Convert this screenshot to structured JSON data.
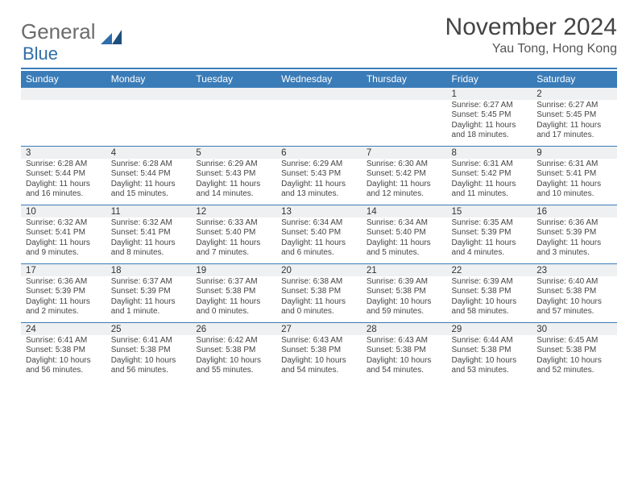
{
  "brand": {
    "part1": "General",
    "part2": "Blue"
  },
  "title": "November 2024",
  "subtitle": "Yau Tong, Hong Kong",
  "colors": {
    "header_bar": "#3a7cb8",
    "row_header_bg": "#eef0f1",
    "text": "#444444",
    "brand_gray": "#6b6b6b",
    "brand_blue": "#2f6ea8"
  },
  "day_names": [
    "Sunday",
    "Monday",
    "Tuesday",
    "Wednesday",
    "Thursday",
    "Friday",
    "Saturday"
  ],
  "weeks": [
    [
      null,
      null,
      null,
      null,
      null,
      {
        "n": "1",
        "sunrise": "Sunrise: 6:27 AM",
        "sunset": "Sunset: 5:45 PM",
        "daylight": "Daylight: 11 hours and 18 minutes."
      },
      {
        "n": "2",
        "sunrise": "Sunrise: 6:27 AM",
        "sunset": "Sunset: 5:45 PM",
        "daylight": "Daylight: 11 hours and 17 minutes."
      }
    ],
    [
      {
        "n": "3",
        "sunrise": "Sunrise: 6:28 AM",
        "sunset": "Sunset: 5:44 PM",
        "daylight": "Daylight: 11 hours and 16 minutes."
      },
      {
        "n": "4",
        "sunrise": "Sunrise: 6:28 AM",
        "sunset": "Sunset: 5:44 PM",
        "daylight": "Daylight: 11 hours and 15 minutes."
      },
      {
        "n": "5",
        "sunrise": "Sunrise: 6:29 AM",
        "sunset": "Sunset: 5:43 PM",
        "daylight": "Daylight: 11 hours and 14 minutes."
      },
      {
        "n": "6",
        "sunrise": "Sunrise: 6:29 AM",
        "sunset": "Sunset: 5:43 PM",
        "daylight": "Daylight: 11 hours and 13 minutes."
      },
      {
        "n": "7",
        "sunrise": "Sunrise: 6:30 AM",
        "sunset": "Sunset: 5:42 PM",
        "daylight": "Daylight: 11 hours and 12 minutes."
      },
      {
        "n": "8",
        "sunrise": "Sunrise: 6:31 AM",
        "sunset": "Sunset: 5:42 PM",
        "daylight": "Daylight: 11 hours and 11 minutes."
      },
      {
        "n": "9",
        "sunrise": "Sunrise: 6:31 AM",
        "sunset": "Sunset: 5:41 PM",
        "daylight": "Daylight: 11 hours and 10 minutes."
      }
    ],
    [
      {
        "n": "10",
        "sunrise": "Sunrise: 6:32 AM",
        "sunset": "Sunset: 5:41 PM",
        "daylight": "Daylight: 11 hours and 9 minutes."
      },
      {
        "n": "11",
        "sunrise": "Sunrise: 6:32 AM",
        "sunset": "Sunset: 5:41 PM",
        "daylight": "Daylight: 11 hours and 8 minutes."
      },
      {
        "n": "12",
        "sunrise": "Sunrise: 6:33 AM",
        "sunset": "Sunset: 5:40 PM",
        "daylight": "Daylight: 11 hours and 7 minutes."
      },
      {
        "n": "13",
        "sunrise": "Sunrise: 6:34 AM",
        "sunset": "Sunset: 5:40 PM",
        "daylight": "Daylight: 11 hours and 6 minutes."
      },
      {
        "n": "14",
        "sunrise": "Sunrise: 6:34 AM",
        "sunset": "Sunset: 5:40 PM",
        "daylight": "Daylight: 11 hours and 5 minutes."
      },
      {
        "n": "15",
        "sunrise": "Sunrise: 6:35 AM",
        "sunset": "Sunset: 5:39 PM",
        "daylight": "Daylight: 11 hours and 4 minutes."
      },
      {
        "n": "16",
        "sunrise": "Sunrise: 6:36 AM",
        "sunset": "Sunset: 5:39 PM",
        "daylight": "Daylight: 11 hours and 3 minutes."
      }
    ],
    [
      {
        "n": "17",
        "sunrise": "Sunrise: 6:36 AM",
        "sunset": "Sunset: 5:39 PM",
        "daylight": "Daylight: 11 hours and 2 minutes."
      },
      {
        "n": "18",
        "sunrise": "Sunrise: 6:37 AM",
        "sunset": "Sunset: 5:39 PM",
        "daylight": "Daylight: 11 hours and 1 minute."
      },
      {
        "n": "19",
        "sunrise": "Sunrise: 6:37 AM",
        "sunset": "Sunset: 5:38 PM",
        "daylight": "Daylight: 11 hours and 0 minutes."
      },
      {
        "n": "20",
        "sunrise": "Sunrise: 6:38 AM",
        "sunset": "Sunset: 5:38 PM",
        "daylight": "Daylight: 11 hours and 0 minutes."
      },
      {
        "n": "21",
        "sunrise": "Sunrise: 6:39 AM",
        "sunset": "Sunset: 5:38 PM",
        "daylight": "Daylight: 10 hours and 59 minutes."
      },
      {
        "n": "22",
        "sunrise": "Sunrise: 6:39 AM",
        "sunset": "Sunset: 5:38 PM",
        "daylight": "Daylight: 10 hours and 58 minutes."
      },
      {
        "n": "23",
        "sunrise": "Sunrise: 6:40 AM",
        "sunset": "Sunset: 5:38 PM",
        "daylight": "Daylight: 10 hours and 57 minutes."
      }
    ],
    [
      {
        "n": "24",
        "sunrise": "Sunrise: 6:41 AM",
        "sunset": "Sunset: 5:38 PM",
        "daylight": "Daylight: 10 hours and 56 minutes."
      },
      {
        "n": "25",
        "sunrise": "Sunrise: 6:41 AM",
        "sunset": "Sunset: 5:38 PM",
        "daylight": "Daylight: 10 hours and 56 minutes."
      },
      {
        "n": "26",
        "sunrise": "Sunrise: 6:42 AM",
        "sunset": "Sunset: 5:38 PM",
        "daylight": "Daylight: 10 hours and 55 minutes."
      },
      {
        "n": "27",
        "sunrise": "Sunrise: 6:43 AM",
        "sunset": "Sunset: 5:38 PM",
        "daylight": "Daylight: 10 hours and 54 minutes."
      },
      {
        "n": "28",
        "sunrise": "Sunrise: 6:43 AM",
        "sunset": "Sunset: 5:38 PM",
        "daylight": "Daylight: 10 hours and 54 minutes."
      },
      {
        "n": "29",
        "sunrise": "Sunrise: 6:44 AM",
        "sunset": "Sunset: 5:38 PM",
        "daylight": "Daylight: 10 hours and 53 minutes."
      },
      {
        "n": "30",
        "sunrise": "Sunrise: 6:45 AM",
        "sunset": "Sunset: 5:38 PM",
        "daylight": "Daylight: 10 hours and 52 minutes."
      }
    ]
  ]
}
